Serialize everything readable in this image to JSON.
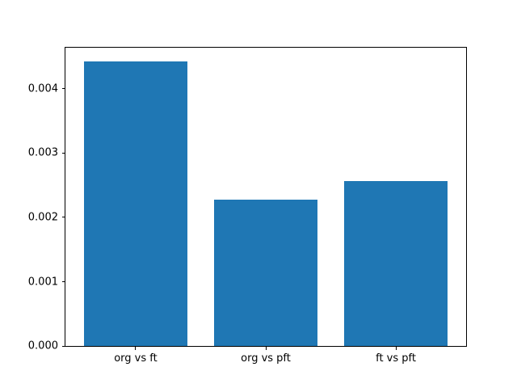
{
  "figure": {
    "background_color": "#ffffff",
    "axes_edge_color": "#000000",
    "tick_color": "#000000",
    "label_color": "#000000"
  },
  "chart_data": {
    "type": "bar",
    "title": "",
    "xlabel": "",
    "ylabel": "",
    "categories": [
      "org vs ft",
      "org vs pft",
      "ft vs pft"
    ],
    "values": [
      0.00442,
      0.00228,
      0.00256
    ],
    "bar_color": "#1f77b4",
    "bar_width": 0.8,
    "xlim": [
      -0.54,
      2.54
    ],
    "ylim": [
      0,
      0.00464
    ],
    "yticks": [
      0,
      0.001,
      0.002,
      0.003,
      0.004
    ],
    "ytick_labels": [
      "0.000",
      "0.001",
      "0.002",
      "0.003",
      "0.004"
    ],
    "grid": false,
    "legend": null
  }
}
